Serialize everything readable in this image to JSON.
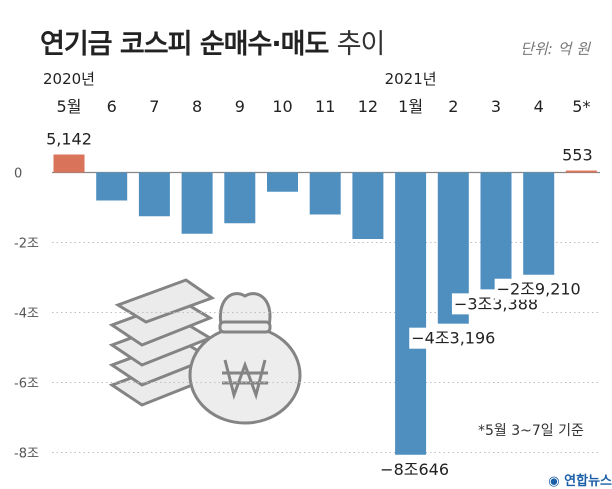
{
  "header": {
    "title_bold": "연기금 코스피 순매수·매도",
    "title_light": "추이",
    "unit": "단위: 억 원"
  },
  "footnote": "*5월 3~7일 기준",
  "source_logo": "연합뉴스",
  "colors": {
    "positive_bar": "#d9735a",
    "negative_bar": "#4f8fc0",
    "axis": "#888888",
    "grid": "#bfbfbf",
    "text": "#222222"
  },
  "chart_data": {
    "type": "bar",
    "title": "연기금 코스피 순매수·매도 추이",
    "unit": "억 원",
    "year_labels": [
      {
        "index": 0,
        "text": "2020년"
      },
      {
        "index": 8,
        "text": "2021년"
      }
    ],
    "categories": [
      "5월",
      "6",
      "7",
      "8",
      "9",
      "10",
      "11",
      "12",
      "1월",
      "2",
      "3",
      "4",
      "5*"
    ],
    "values": [
      5142,
      -8000,
      -12500,
      -17500,
      -14500,
      -5500,
      -12000,
      -19000,
      -80646,
      -43196,
      -33388,
      -29210,
      553
    ],
    "value_labels": [
      "5,142",
      "",
      "",
      "",
      "",
      "",
      "",
      "",
      "−8조646",
      "−4조3,196",
      "−3조3,388",
      "−2조9,210",
      "553"
    ],
    "ylim": [
      -83000,
      7000
    ],
    "yticks": [
      {
        "value": 0,
        "label": "0"
      },
      {
        "value": -20000,
        "label": "-2조"
      },
      {
        "value": -40000,
        "label": "-4조"
      },
      {
        "value": -60000,
        "label": "-6조"
      },
      {
        "value": -80000,
        "label": "-8조"
      }
    ],
    "grid": true,
    "legend": "none"
  }
}
